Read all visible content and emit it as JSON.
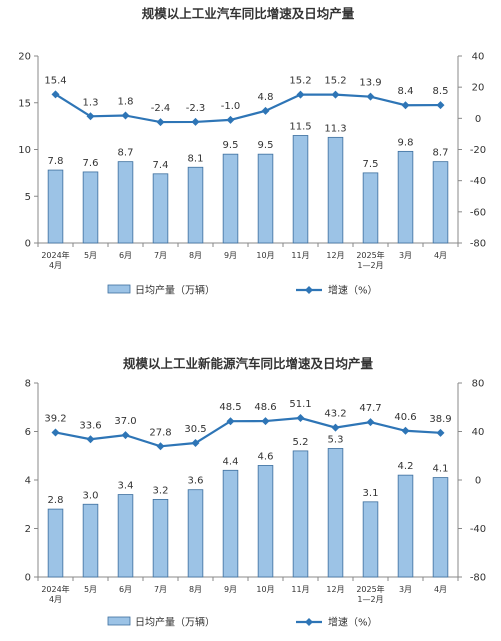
{
  "chart_data": [
    {
      "type": "bar",
      "title": "规模以上工业汽车同比增速及日均产量",
      "categories": [
        [
          "2024年",
          "4月"
        ],
        [
          "5月"
        ],
        [
          "6月"
        ],
        [
          "7月"
        ],
        [
          "8月"
        ],
        [
          "9月"
        ],
        [
          "10月"
        ],
        [
          "11月"
        ],
        [
          "12月"
        ],
        [
          "2025年",
          "1—2月"
        ],
        [
          "3月"
        ],
        [
          "4月"
        ]
      ],
      "series": [
        {
          "name": "日均产量（万辆）",
          "kind": "bar",
          "axis": "left",
          "color": "#9cc3e6",
          "values": [
            7.8,
            7.6,
            8.7,
            7.4,
            8.1,
            9.5,
            9.5,
            11.5,
            11.3,
            7.5,
            9.8,
            8.7
          ],
          "labels": [
            "7.8",
            "7.6",
            "8.7",
            "7.4",
            "8.1",
            "9.5",
            "9.5",
            "11.5",
            "11.3",
            "7.5",
            "9.8",
            "8.7"
          ]
        },
        {
          "name": "增速（%）",
          "kind": "line",
          "axis": "right",
          "color": "#2e75b6",
          "values": [
            15.4,
            1.3,
            1.8,
            -2.4,
            -2.3,
            -1.0,
            4.8,
            15.2,
            15.2,
            13.9,
            8.4,
            8.5
          ],
          "labels": [
            "15.4",
            "1.3",
            "1.8",
            "-2.4",
            "-2.3",
            "-1.0",
            "4.8",
            "15.2",
            "15.2",
            "13.9",
            "8.4",
            "8.5"
          ]
        }
      ],
      "ylim_left": [
        0,
        20
      ],
      "yticks_left": [
        0,
        5,
        10,
        15,
        20
      ],
      "ylim_right": [
        -80,
        40
      ],
      "yticks_right": [
        -80,
        -60,
        -40,
        -20,
        0,
        20,
        40
      ],
      "grid": false,
      "legend_position": "bottom"
    },
    {
      "type": "bar",
      "title": "规模以上工业新能源汽车同比增速及日均产量",
      "categories": [
        [
          "2024年",
          "4月"
        ],
        [
          "5月"
        ],
        [
          "6月"
        ],
        [
          "7月"
        ],
        [
          "8月"
        ],
        [
          "9月"
        ],
        [
          "10月"
        ],
        [
          "11月"
        ],
        [
          "12月"
        ],
        [
          "2025年",
          "1—2月"
        ],
        [
          "3月"
        ],
        [
          "4月"
        ]
      ],
      "series": [
        {
          "name": "日均产量（万辆）",
          "kind": "bar",
          "axis": "left",
          "color": "#9cc3e6",
          "values": [
            2.8,
            3.0,
            3.4,
            3.2,
            3.6,
            4.4,
            4.6,
            5.2,
            5.3,
            3.1,
            4.2,
            4.1
          ],
          "labels": [
            "2.8",
            "3.0",
            "3.4",
            "3.2",
            "3.6",
            "4.4",
            "4.6",
            "5.2",
            "5.3",
            "3.1",
            "4.2",
            "4.1"
          ]
        },
        {
          "name": "增速（%）",
          "kind": "line",
          "axis": "right",
          "color": "#2e75b6",
          "values": [
            39.2,
            33.6,
            37.0,
            27.8,
            30.5,
            48.5,
            48.6,
            51.1,
            43.2,
            47.7,
            40.6,
            38.9
          ],
          "labels": [
            "39.2",
            "33.6",
            "37.0",
            "27.8",
            "30.5",
            "48.5",
            "48.6",
            "51.1",
            "43.2",
            "47.7",
            "40.6",
            "38.9"
          ]
        }
      ],
      "ylim_left": [
        0,
        8
      ],
      "yticks_left": [
        0,
        2,
        4,
        6,
        8
      ],
      "ylim_right": [
        -80,
        80
      ],
      "yticks_right": [
        -80,
        -40,
        0,
        40,
        80
      ],
      "grid": false,
      "legend_position": "bottom"
    }
  ]
}
